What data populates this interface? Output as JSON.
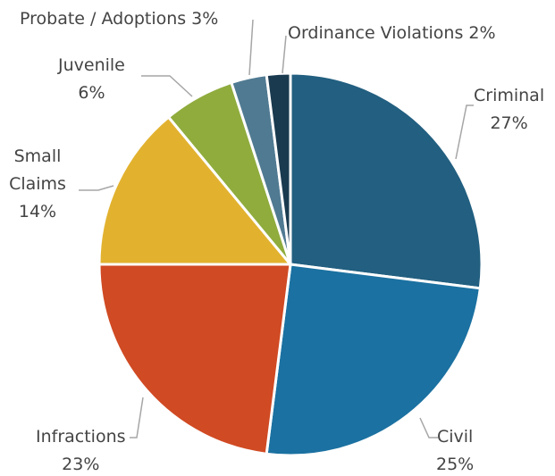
{
  "chart_data": {
    "type": "pie",
    "categories": [
      "Criminal",
      "Civil",
      "Infractions",
      "Small Claims",
      "Juvenile",
      "Probate / Adoptions",
      "Ordinance Violations"
    ],
    "values": [
      27,
      25,
      23,
      14,
      6,
      3,
      2
    ],
    "value_labels": [
      "27%",
      "25%",
      "23%",
      "14%",
      "6%",
      "3%",
      "2%"
    ],
    "colors": [
      "#225f80",
      "#1b71a1",
      "#d04a23",
      "#e2b22f",
      "#8fac3d",
      "#507a92",
      "#1a3a4f"
    ]
  }
}
